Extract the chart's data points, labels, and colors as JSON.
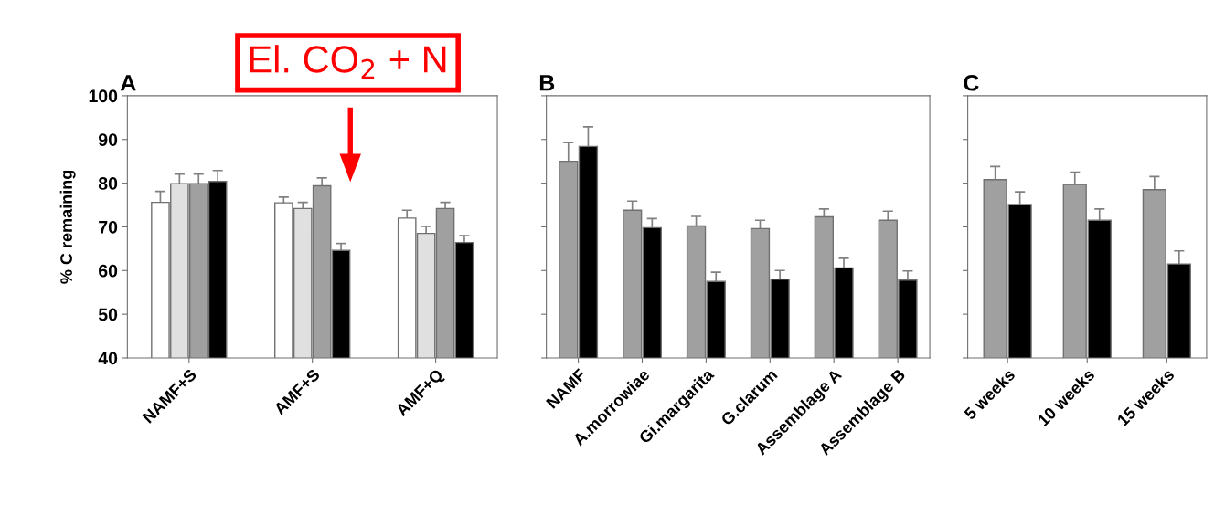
{
  "chart_data": [
    {
      "type": "bar",
      "title": "A",
      "ylabel": "% C remaining",
      "categories": [
        "NAMF+S",
        "AMF+S",
        "AMF+Q"
      ],
      "series": [
        {
          "color": "#ffffff",
          "values": [
            75.6,
            75.5,
            72.0
          ],
          "errors": [
            2.5,
            1.3,
            1.8
          ]
        },
        {
          "color": "#e0e0e0",
          "values": [
            79.9,
            74.2,
            68.5
          ],
          "errors": [
            2.2,
            1.4,
            1.6
          ]
        },
        {
          "color": "#a0a0a0",
          "values": [
            79.9,
            79.4,
            74.2
          ],
          "errors": [
            2.2,
            1.8,
            1.4
          ]
        },
        {
          "color": "#000000",
          "values": [
            80.4,
            64.6,
            66.4
          ],
          "errors": [
            2.5,
            1.6,
            1.6
          ]
        }
      ],
      "ylim": [
        40,
        100
      ],
      "yticks": [
        40,
        50,
        60,
        70,
        80,
        90,
        100
      ],
      "annotations": [
        "El. CO$_{2}$ + N"
      ]
    },
    {
      "type": "bar",
      "title": "B",
      "categories": [
        "NAMF",
        "A.morrowiae",
        "Gi.margarita",
        "G.clarum",
        "Assemblage A",
        "Assemblage B"
      ],
      "series": [
        {
          "color": "#a0a0a0",
          "values": [
            85.0,
            73.8,
            70.2,
            69.6,
            72.3,
            71.5
          ],
          "errors": [
            4.3,
            2.1,
            2.2,
            1.9,
            1.8,
            2.1
          ]
        },
        {
          "color": "#000000",
          "values": [
            88.4,
            69.8,
            57.5,
            58.0,
            60.6,
            57.8
          ],
          "errors": [
            4.5,
            2.1,
            2.1,
            2.0,
            2.2,
            2.1
          ]
        }
      ],
      "ylim": [
        40,
        100
      ],
      "yticks": [
        {
          "value": 40,
          "label": null
        },
        {
          "value": 50,
          "label": null
        },
        {
          "value": 60,
          "label": null
        },
        {
          "value": 70,
          "label": null
        },
        {
          "value": 80,
          "label": null
        },
        {
          "value": 90,
          "label": null
        },
        {
          "value": 100,
          "label": null
        }
      ],
      "tick_labels": "x"
    },
    {
      "type": "bar",
      "title": "C",
      "categories": [
        "5 weeks",
        "10 weeks",
        "15 weeks"
      ],
      "series": [
        {
          "color": "#a0a0a0",
          "values": [
            80.8,
            79.7,
            78.5
          ],
          "errors": [
            3.0,
            2.8,
            3.0
          ]
        },
        {
          "color": "#000000",
          "values": [
            75.1,
            71.5,
            61.5
          ],
          "errors": [
            2.9,
            2.6,
            3.0
          ]
        }
      ],
      "ylim": [
        40,
        100
      ],
      "yticks": [
        {
          "value": 40,
          "label": null
        },
        {
          "value": 50,
          "label": null
        },
        {
          "value": 60,
          "label": null
        },
        {
          "value": 70,
          "label": null
        },
        {
          "value": 80,
          "label": null
        },
        {
          "value": 90,
          "label": null
        },
        {
          "value": 100,
          "label": null
        }
      ],
      "tick_labels": "x"
    }
  ]
}
